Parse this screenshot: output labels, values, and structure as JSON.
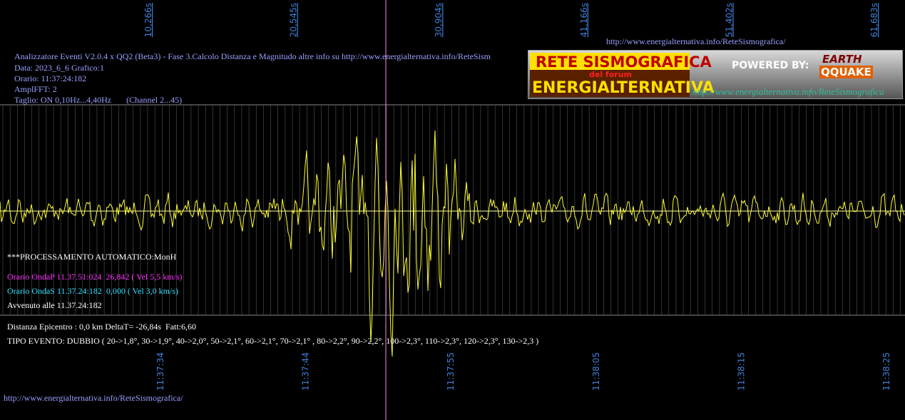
{
  "top_axis": {
    "labels": [
      "10,266s",
      "20,545s",
      "30,904s",
      "41,166s",
      "51,402s",
      "61,683s"
    ]
  },
  "bottom_axis": {
    "labels": [
      "11:37:34",
      "11:37:44",
      "11:37:55",
      "11:38:05",
      "11:38:15",
      "11:38:25"
    ]
  },
  "header_url": "http://www.energialternativa.info/ReteSismografica/",
  "info": [
    "Analizzatore Eventi V2.0.4 x QQ2 (Beta3) - Fase 3.Calcolo Distanza e Magnitudo altre info su http://www.energialternativa.info/ReteSism",
    "Data: 2023_6_6 Grafico:1",
    "Orario: 11:37:24:182",
    "AmplFFT: 2",
    "Taglio: ON 0,10Hz...4,40Hz       (Channel 2...45)"
  ],
  "logo": {
    "title": "RETE SISMOGRAFICA",
    "subtitle": "del forum",
    "name": "ENERGIALTERNATIVA",
    "powered": "POWERED BY:",
    "brand_top": "EARTH",
    "brand_bottom": "QQUAKE",
    "url": "http://www.energialternativa.info/ReteSismografica"
  },
  "processing": {
    "title": "***PROCESSAMENTO AUTOMATICO:MonH",
    "onda_p": "Orario OndaP 11.37.51:024  26,842 ( Vel 5,5 km/s)",
    "onda_s": "Orario OndaS 11.37.24:182  0,000 ( Vel 3,0 km/s)",
    "event_time": "Avvenuto alle 11.37.24:182",
    "distance": "Distanza Epicentro : 0,0 km DeltaT= -26,84s  Fatt:6,60",
    "type": "TIPO EVENTO: DUBBIO ( 20->1,8°, 30->1,9°, 40->2,0°, 50->2,1°, 60->2,1°, 70->2,1° , 80->2,2°, 90->2,2°, 100->2,3°, 110->2,3°, 120->2,3°, 130->2,3 )"
  },
  "footer_url": "http://www.energialternativa.info/ReteSismografica/"
}
